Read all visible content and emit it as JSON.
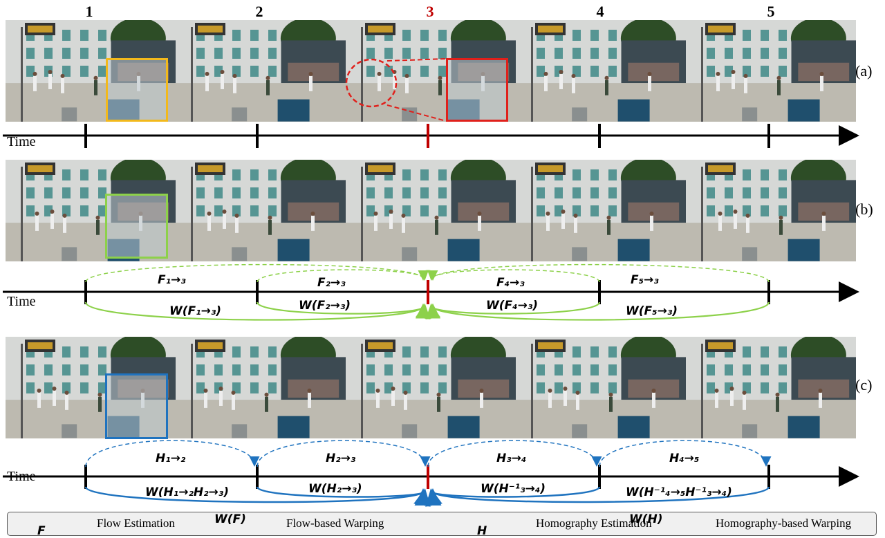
{
  "frame_numbers": [
    "1",
    "2",
    "3",
    "4",
    "5"
  ],
  "highlight_color": "#c00000",
  "row_labels": [
    "(a)",
    "(b)",
    "(c)"
  ],
  "time_label": "Time",
  "flow_labels": {
    "est": [
      "F₁→₃",
      "F₂→₃",
      "F₄→₃",
      "F₅→₃"
    ],
    "warp": [
      "W(F₁→₃)",
      "W(F₂→₃)",
      "W(F₄→₃)",
      "W(F₅→₃)"
    ]
  },
  "homography_labels": {
    "est": [
      "H₁→₂",
      "H₂→₃",
      "H₃→₄",
      "H₄→₅"
    ],
    "warp": [
      "W(H₁→₂H₂→₃)",
      "W(H₂→₃)",
      "W(H⁻¹₃→₄)",
      "W(H⁻¹₄→₅H⁻¹₃→₄)"
    ]
  },
  "legend": {
    "flow_est_symbol": "F",
    "flow_est_label": "Flow Estimation",
    "flow_warp_symbol": "W(F)",
    "flow_warp_label": "Flow-based Warping",
    "homo_est_symbol": "H",
    "homo_est_label": "Homography Estimation",
    "homo_warp_symbol": "W(H)",
    "homo_warp_label": "Homography-based Warping"
  },
  "colors": {
    "flow": "#8dd14a",
    "homography": "#1f73bf",
    "box_a": "#f2b91c",
    "box_a_target": "#e0201b",
    "box_b": "#8dd14a",
    "box_c": "#1f73bf",
    "timeline": "#000000",
    "target_tick": "#c00000"
  }
}
